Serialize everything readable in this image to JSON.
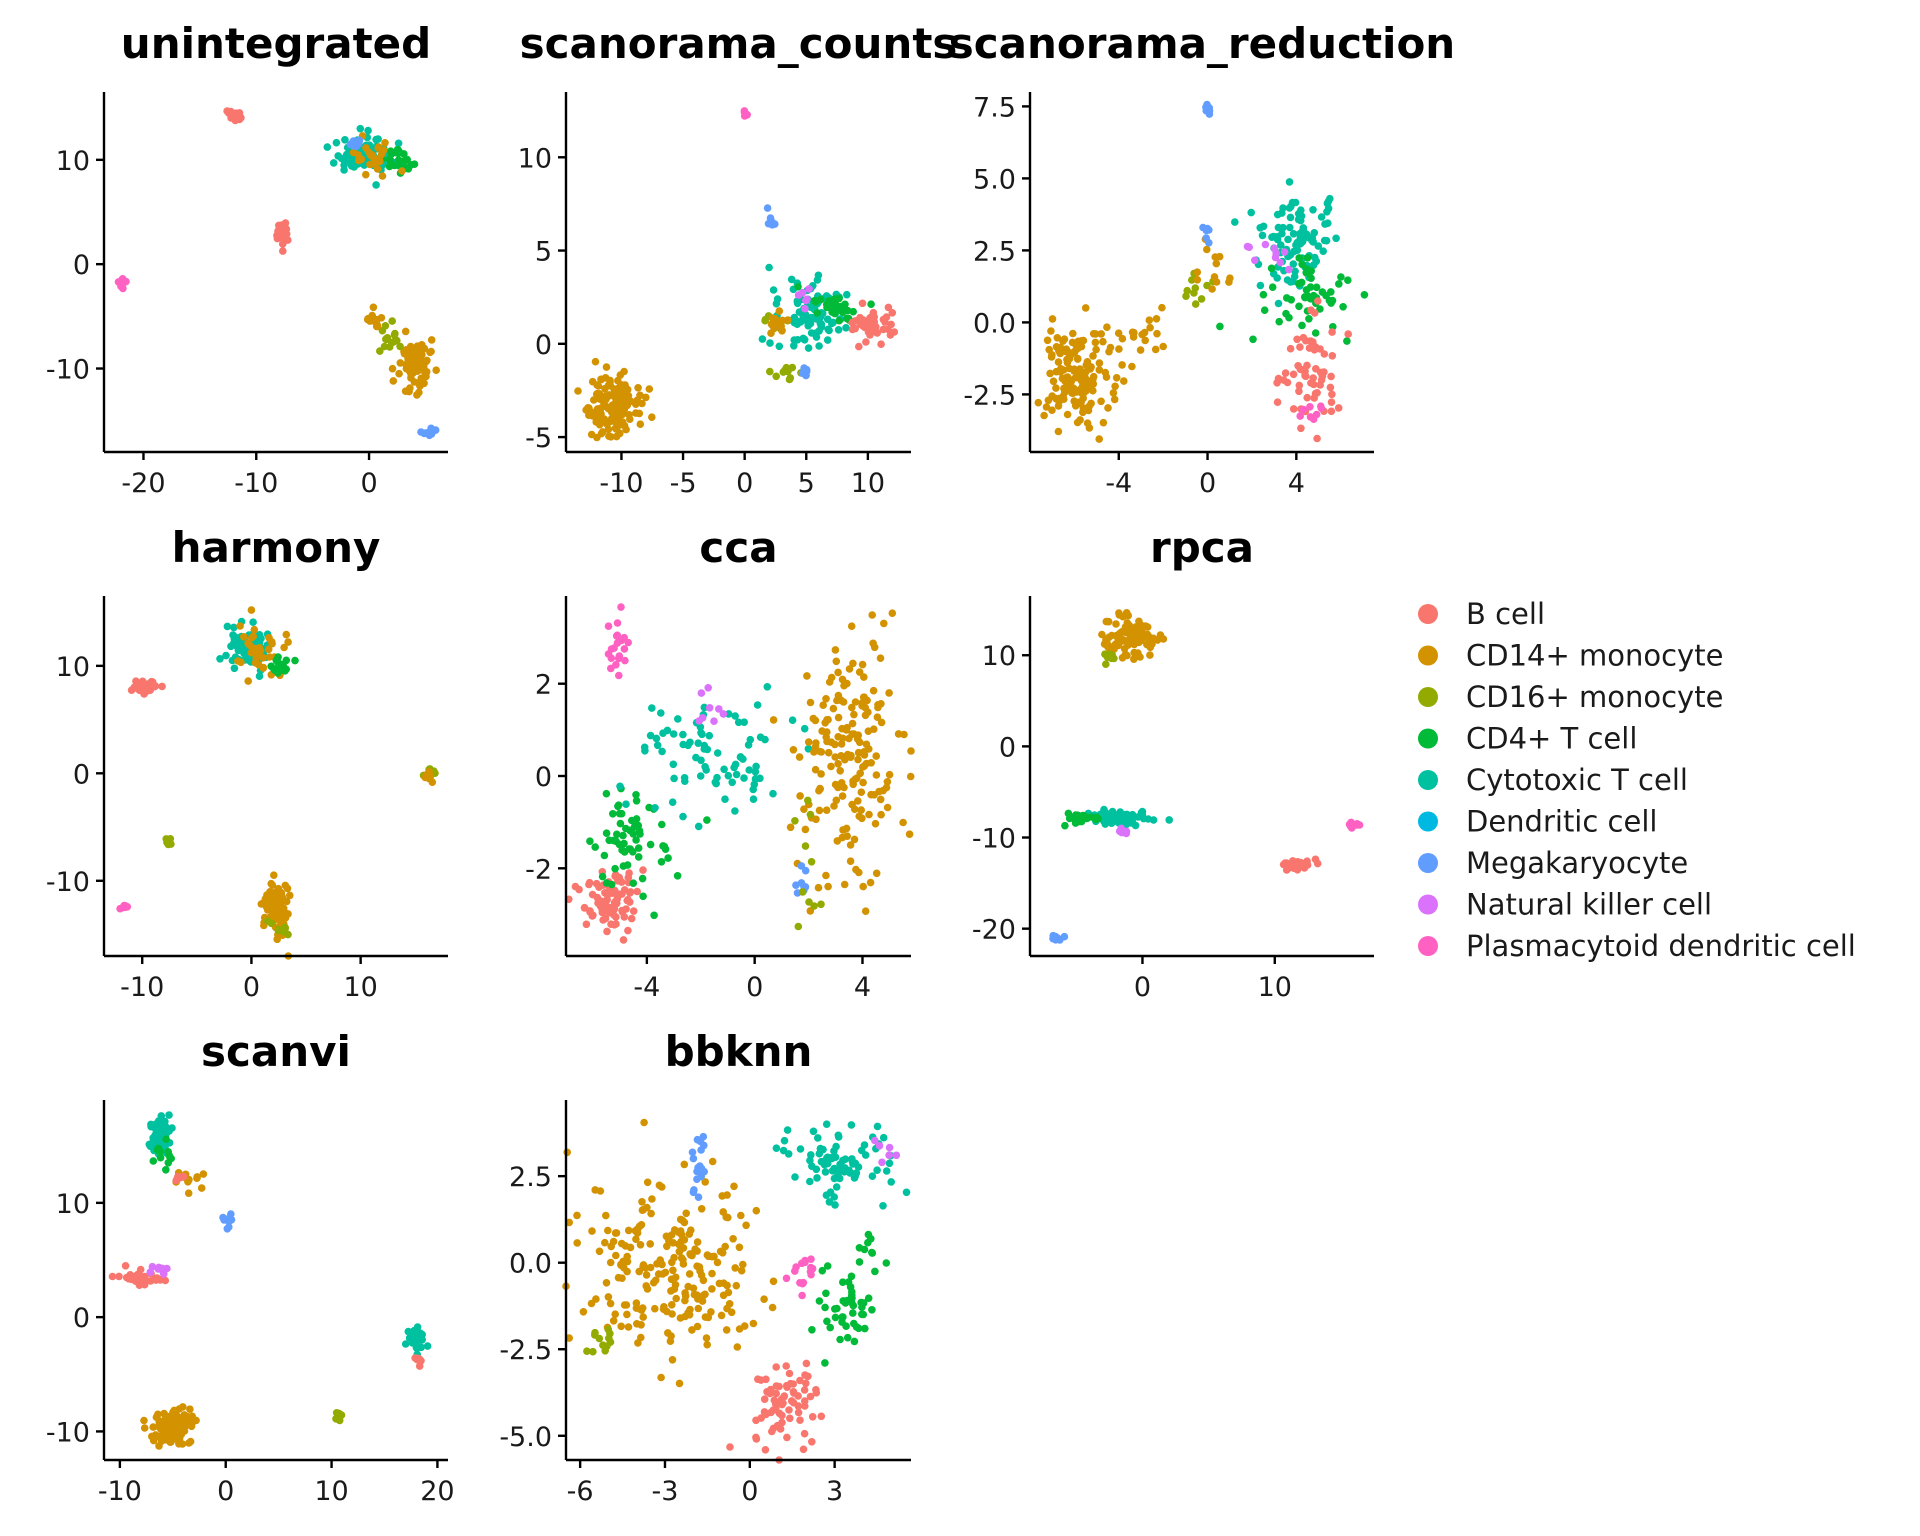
{
  "figure": {
    "legend": [
      {
        "label": "B cell",
        "color": "#F8766D"
      },
      {
        "label": "CD14+ monocyte",
        "color": "#D39200"
      },
      {
        "label": "CD16+ monocyte",
        "color": "#93AA00"
      },
      {
        "label": "CD4+ T cell",
        "color": "#00BA38"
      },
      {
        "label": "Cytotoxic T cell",
        "color": "#00C19F"
      },
      {
        "label": "Dendritic cell",
        "color": "#00B9E3"
      },
      {
        "label": "Megakaryocyte",
        "color": "#619CFF"
      },
      {
        "label": "Natural killer cell",
        "color": "#DB72FB"
      },
      {
        "label": "Plasmacytoid dendritic cell",
        "color": "#FF61C3"
      }
    ],
    "legend_placement": "right, beside middle row"
  },
  "chart_data": [
    {
      "type": "scatter",
      "title": "unintegrated",
      "xlim": [
        -23.5,
        7
      ],
      "ylim": [
        -18,
        16.5
      ],
      "xticks": [
        {
          "v": -20,
          "label": "-20"
        },
        {
          "v": -10,
          "label": "-10"
        },
        {
          "v": 0,
          "label": "0"
        }
      ],
      "yticks": [
        {
          "v": 10,
          "label": "10"
        },
        {
          "v": 0,
          "label": "0"
        },
        {
          "v": -10,
          "label": "-10"
        }
      ],
      "clusters": [
        {
          "cell_type": "B cell",
          "cx": -12,
          "cy": 14,
          "sx": 0.3,
          "sy": 0.4,
          "n": 18
        },
        {
          "cell_type": "B cell",
          "cx": -7.8,
          "cy": 3,
          "sx": 0.3,
          "sy": 0.6,
          "n": 30
        },
        {
          "cell_type": "Plasmacytoid dendritic cell",
          "cx": -22,
          "cy": -1.8,
          "sx": 0.2,
          "sy": 0.3,
          "n": 8
        },
        {
          "cell_type": "Cytotoxic T cell",
          "cx": -0.5,
          "cy": 10.5,
          "sx": 1.2,
          "sy": 0.8,
          "n": 80
        },
        {
          "cell_type": "CD4+ T cell",
          "cx": 2.5,
          "cy": 10,
          "sx": 0.8,
          "sy": 0.6,
          "n": 25
        },
        {
          "cell_type": "CD14+ monocyte",
          "cx": 0.5,
          "cy": 10.5,
          "sx": 1.0,
          "sy": 0.7,
          "n": 25
        },
        {
          "cell_type": "Megakaryocyte",
          "cx": -1,
          "cy": 11.5,
          "sx": 0.4,
          "sy": 0.3,
          "n": 8
        },
        {
          "cell_type": "CD14+ monocyte",
          "cx": 4.2,
          "cy": -9.5,
          "sx": 0.7,
          "sy": 1.2,
          "n": 90
        },
        {
          "cell_type": "CD16+ monocyte",
          "cx": 1.5,
          "cy": -7,
          "sx": 0.6,
          "sy": 0.8,
          "n": 15
        },
        {
          "cell_type": "CD14+ monocyte",
          "cx": 0.5,
          "cy": -5.5,
          "sx": 0.4,
          "sy": 0.5,
          "n": 12
        },
        {
          "cell_type": "Megakaryocyte",
          "cx": 5.4,
          "cy": -16.2,
          "sx": 0.3,
          "sy": 0.2,
          "n": 10
        }
      ]
    },
    {
      "type": "scatter",
      "title": "scanorama_counts",
      "xlim": [
        -14.5,
        13.5
      ],
      "ylim": [
        -5.8,
        13.5
      ],
      "xticks": [
        {
          "v": -10,
          "label": "-10"
        },
        {
          "v": -5,
          "label": "-5"
        },
        {
          "v": 0,
          "label": "0"
        },
        {
          "v": 5,
          "label": "5"
        },
        {
          "v": 10,
          "label": "10"
        }
      ],
      "yticks": [
        {
          "v": 10,
          "label": "10"
        },
        {
          "v": 5,
          "label": "5"
        },
        {
          "v": 0,
          "label": "0"
        },
        {
          "v": -5,
          "label": "-5"
        }
      ],
      "clusters": [
        {
          "cell_type": "CD14+ monocyte",
          "cx": -10.5,
          "cy": -3.5,
          "sx": 1.0,
          "sy": 0.8,
          "n": 150
        },
        {
          "cell_type": "Plasmacytoid dendritic cell",
          "cx": 0,
          "cy": 12.4,
          "sx": 0.1,
          "sy": 0.2,
          "n": 6
        },
        {
          "cell_type": "Megakaryocyte",
          "cx": 2,
          "cy": 6.8,
          "sx": 0.2,
          "sy": 0.3,
          "n": 6
        },
        {
          "cell_type": "Cytotoxic T cell",
          "cx": 5.5,
          "cy": 1.5,
          "sx": 1.5,
          "sy": 0.8,
          "n": 90
        },
        {
          "cell_type": "CD4+ T cell",
          "cx": 7.5,
          "cy": 2,
          "sx": 1.2,
          "sy": 0.5,
          "n": 30
        },
        {
          "cell_type": "CD16+ monocyte",
          "cx": 2,
          "cy": 1.2,
          "sx": 0.6,
          "sy": 0.2,
          "n": 10
        },
        {
          "cell_type": "CD14+ monocyte",
          "cx": 2.5,
          "cy": 1.2,
          "sx": 0.8,
          "sy": 0.3,
          "n": 15
        },
        {
          "cell_type": "B cell",
          "cx": 10.5,
          "cy": 1,
          "sx": 1.0,
          "sy": 0.5,
          "n": 50
        },
        {
          "cell_type": "Natural killer cell",
          "cx": 5,
          "cy": 2.5,
          "sx": 0.4,
          "sy": 0.3,
          "n": 6
        },
        {
          "cell_type": "CD16+ monocyte",
          "cx": 3.5,
          "cy": -1.5,
          "sx": 0.9,
          "sy": 0.2,
          "n": 12
        },
        {
          "cell_type": "Megakaryocyte",
          "cx": 5,
          "cy": -1.5,
          "sx": 0.2,
          "sy": 0.3,
          "n": 6
        }
      ]
    },
    {
      "type": "scatter",
      "title": "scanorama_reduction",
      "xlim": [
        -8,
        7.5
      ],
      "ylim": [
        -4.5,
        8.0
      ],
      "xticks": [
        {
          "v": -4,
          "label": "-4"
        },
        {
          "v": 0,
          "label": "0"
        },
        {
          "v": 4,
          "label": "4"
        }
      ],
      "yticks": [
        {
          "v": 7.5,
          "label": "7.5"
        },
        {
          "v": 5,
          "label": "5.0"
        },
        {
          "v": 2.5,
          "label": "2.5"
        },
        {
          "v": 0,
          "label": "0.0"
        },
        {
          "v": -2.5,
          "label": "-2.5"
        }
      ],
      "clusters": [
        {
          "cell_type": "CD14+ monocyte",
          "cx": -5.8,
          "cy": -1.8,
          "sx": 0.8,
          "sy": 0.9,
          "n": 160
        },
        {
          "cell_type": "CD14+ monocyte",
          "cx": -3,
          "cy": -0.5,
          "sx": 0.9,
          "sy": 0.5,
          "n": 18
        },
        {
          "cell_type": "CD16+ monocyte",
          "cx": -0.5,
          "cy": 1.2,
          "sx": 0.5,
          "sy": 0.3,
          "n": 10
        },
        {
          "cell_type": "CD14+ monocyte",
          "cx": 0.3,
          "cy": 2.2,
          "sx": 0.4,
          "sy": 0.6,
          "n": 12
        },
        {
          "cell_type": "Megakaryocyte",
          "cx": 0,
          "cy": 7.4,
          "sx": 0.1,
          "sy": 0.1,
          "n": 6
        },
        {
          "cell_type": "Megakaryocyte",
          "cx": -0.1,
          "cy": 3,
          "sx": 0.1,
          "sy": 0.2,
          "n": 6
        },
        {
          "cell_type": "Cytotoxic T cell",
          "cx": 4,
          "cy": 2.8,
          "sx": 0.8,
          "sy": 0.8,
          "n": 100
        },
        {
          "cell_type": "CD4+ T cell",
          "cx": 4.2,
          "cy": 0.8,
          "sx": 1.1,
          "sy": 0.6,
          "n": 50
        },
        {
          "cell_type": "B cell",
          "cx": 4.8,
          "cy": -1.6,
          "sx": 0.6,
          "sy": 0.9,
          "n": 60
        },
        {
          "cell_type": "Natural killer cell",
          "cx": 2.5,
          "cy": 2.3,
          "sx": 0.6,
          "sy": 0.3,
          "n": 10
        },
        {
          "cell_type": "Plasmacytoid dendritic cell",
          "cx": 4.8,
          "cy": -3.2,
          "sx": 0.3,
          "sy": 0.2,
          "n": 8
        }
      ]
    },
    {
      "type": "scatter",
      "title": "harmony",
      "xlim": [
        -13.5,
        18
      ],
      "ylim": [
        -17,
        16.5
      ],
      "xticks": [
        {
          "v": -10,
          "label": "-10"
        },
        {
          "v": 0,
          "label": "0"
        },
        {
          "v": 10,
          "label": "10"
        }
      ],
      "yticks": [
        {
          "v": 10,
          "label": "10"
        },
        {
          "v": 0,
          "label": "0"
        },
        {
          "v": -10,
          "label": "-10"
        }
      ],
      "clusters": [
        {
          "cell_type": "B cell",
          "cx": -9.8,
          "cy": 8,
          "sx": 0.6,
          "sy": 0.3,
          "n": 35
        },
        {
          "cell_type": "Cytotoxic T cell",
          "cx": -0.5,
          "cy": 12,
          "sx": 1.0,
          "sy": 1.2,
          "n": 60
        },
        {
          "cell_type": "CD14+ monocyte",
          "cx": 1,
          "cy": 11.5,
          "sx": 1.3,
          "sy": 1.4,
          "n": 35
        },
        {
          "cell_type": "CD4+ T cell",
          "cx": 2.5,
          "cy": 10,
          "sx": 0.5,
          "sy": 0.4,
          "n": 15
        },
        {
          "cell_type": "CD16+ monocyte",
          "cx": 16.2,
          "cy": 0,
          "sx": 0.2,
          "sy": 0.4,
          "n": 10
        },
        {
          "cell_type": "CD14+ monocyte",
          "cx": 16.3,
          "cy": -0.3,
          "sx": 0.2,
          "sy": 0.4,
          "n": 8
        },
        {
          "cell_type": "CD16+ monocyte",
          "cx": -7.6,
          "cy": -6.2,
          "sx": 0.2,
          "sy": 0.2,
          "n": 5
        },
        {
          "cell_type": "CD14+ monocyte",
          "cx": 2.2,
          "cy": -12.5,
          "sx": 0.6,
          "sy": 1.4,
          "n": 90
        },
        {
          "cell_type": "CD16+ monocyte",
          "cx": 2.5,
          "cy": -14.5,
          "sx": 0.5,
          "sy": 0.4,
          "n": 10
        },
        {
          "cell_type": "Plasmacytoid dendritic cell",
          "cx": -11.8,
          "cy": -12.5,
          "sx": 0.2,
          "sy": 0.2,
          "n": 6
        }
      ]
    },
    {
      "type": "scatter",
      "title": "cca",
      "xlim": [
        -7,
        5.8
      ],
      "ylim": [
        -3.9,
        3.9
      ],
      "xticks": [
        {
          "v": -4,
          "label": "-4"
        },
        {
          "v": 0,
          "label": "0"
        },
        {
          "v": 4,
          "label": "4"
        }
      ],
      "yticks": [
        {
          "v": 2,
          "label": "2"
        },
        {
          "v": 0,
          "label": "0"
        },
        {
          "v": -2,
          "label": "-2"
        }
      ],
      "clusters": [
        {
          "cell_type": "Plasmacytoid dendritic cell",
          "cx": -5.1,
          "cy": 2.8,
          "sx": 0.2,
          "sy": 0.25,
          "n": 20
        },
        {
          "cell_type": "B cell",
          "cx": -5.3,
          "cy": -2.7,
          "sx": 0.6,
          "sy": 0.35,
          "n": 80
        },
        {
          "cell_type": "CD4+ T cell",
          "cx": -4.5,
          "cy": -1.3,
          "sx": 0.8,
          "sy": 0.5,
          "n": 60
        },
        {
          "cell_type": "Cytotoxic T cell",
          "cx": -1.8,
          "cy": 0.5,
          "sx": 1.5,
          "sy": 0.7,
          "n": 80
        },
        {
          "cell_type": "Natural killer cell",
          "cx": -1.8,
          "cy": 1.4,
          "sx": 0.3,
          "sy": 0.2,
          "n": 8
        },
        {
          "cell_type": "CD14+ monocyte",
          "cx": 3.5,
          "cy": 0.5,
          "sx": 1.0,
          "sy": 1.4,
          "n": 180
        },
        {
          "cell_type": "Megakaryocyte",
          "cx": 1.7,
          "cy": -2.3,
          "sx": 0.2,
          "sy": 0.3,
          "n": 8
        },
        {
          "cell_type": "CD16+ monocyte",
          "cx": 2,
          "cy": -1.5,
          "sx": 0.4,
          "sy": 0.8,
          "n": 10
        }
      ]
    },
    {
      "type": "scatter",
      "title": "rpca",
      "xlim": [
        -8.5,
        17.5
      ],
      "ylim": [
        -23,
        16.5
      ],
      "xticks": [
        {
          "v": 0,
          "label": "0"
        },
        {
          "v": 10,
          "label": "10"
        }
      ],
      "yticks": [
        {
          "v": 10,
          "label": "10"
        },
        {
          "v": 0,
          "label": "0"
        },
        {
          "v": -10,
          "label": "-10"
        },
        {
          "v": -20,
          "label": "-20"
        }
      ],
      "clusters": [
        {
          "cell_type": "CD14+ monocyte",
          "cx": -1,
          "cy": 12,
          "sx": 0.9,
          "sy": 1.1,
          "n": 90
        },
        {
          "cell_type": "CD16+ monocyte",
          "cx": -2.7,
          "cy": 10,
          "sx": 0.4,
          "sy": 0.4,
          "n": 8
        },
        {
          "cell_type": "Cytotoxic T cell",
          "cx": -2,
          "cy": -7.8,
          "sx": 1.3,
          "sy": 0.4,
          "n": 60
        },
        {
          "cell_type": "CD4+ T cell",
          "cx": -4.5,
          "cy": -7.8,
          "sx": 0.6,
          "sy": 0.3,
          "n": 25
        },
        {
          "cell_type": "Natural killer cell",
          "cx": -1.5,
          "cy": -9.3,
          "sx": 0.3,
          "sy": 0.2,
          "n": 6
        },
        {
          "cell_type": "B cell",
          "cx": 11.5,
          "cy": -13,
          "sx": 0.5,
          "sy": 0.3,
          "n": 35
        },
        {
          "cell_type": "Plasmacytoid dendritic cell",
          "cx": 16,
          "cy": -8.6,
          "sx": 0.2,
          "sy": 0.2,
          "n": 8
        },
        {
          "cell_type": "Megakaryocyte",
          "cx": -6.5,
          "cy": -21,
          "sx": 0.3,
          "sy": 0.2,
          "n": 8
        }
      ]
    },
    {
      "type": "scatter",
      "title": "scanvi",
      "xlim": [
        -11.5,
        21
      ],
      "ylim": [
        -12.5,
        19
      ],
      "xticks": [
        {
          "v": -10,
          "label": "-10"
        },
        {
          "v": 0,
          "label": "0"
        },
        {
          "v": 10,
          "label": "10"
        },
        {
          "v": 20,
          "label": "20"
        }
      ],
      "yticks": [
        {
          "v": 10,
          "label": "10"
        },
        {
          "v": 0,
          "label": "0"
        },
        {
          "v": -10,
          "label": "-10"
        }
      ],
      "clusters": [
        {
          "cell_type": "Cytotoxic T cell",
          "cx": -6.2,
          "cy": 16,
          "sx": 0.5,
          "sy": 1.0,
          "n": 50
        },
        {
          "cell_type": "CD4+ T cell",
          "cx": -5.8,
          "cy": 14.5,
          "sx": 0.5,
          "sy": 0.8,
          "n": 12
        },
        {
          "cell_type": "CD14+ monocyte",
          "cx": -3.5,
          "cy": 12,
          "sx": 0.8,
          "sy": 0.4,
          "n": 12
        },
        {
          "cell_type": "B cell",
          "cx": -4.5,
          "cy": 12.3,
          "sx": 0.3,
          "sy": 0.2,
          "n": 6
        },
        {
          "cell_type": "Megakaryocyte",
          "cx": 0.2,
          "cy": 8.6,
          "sx": 0.3,
          "sy": 0.6,
          "n": 8
        },
        {
          "cell_type": "B cell",
          "cx": -8.2,
          "cy": 3.5,
          "sx": 1.2,
          "sy": 0.3,
          "n": 35
        },
        {
          "cell_type": "Natural killer cell",
          "cx": -6.3,
          "cy": 4.3,
          "sx": 0.3,
          "sy": 0.3,
          "n": 8
        },
        {
          "cell_type": "CD14+ monocyte",
          "cx": -4.8,
          "cy": -9.5,
          "sx": 1.2,
          "sy": 0.8,
          "n": 110
        },
        {
          "cell_type": "CD16+ monocyte",
          "cx": 10.8,
          "cy": -8.8,
          "sx": 0.3,
          "sy": 0.2,
          "n": 8
        },
        {
          "cell_type": "Cytotoxic T cell",
          "cx": 18,
          "cy": -2,
          "sx": 0.5,
          "sy": 0.5,
          "n": 25
        },
        {
          "cell_type": "B cell",
          "cx": 18.2,
          "cy": -3.8,
          "sx": 0.2,
          "sy": 0.3,
          "n": 6
        }
      ]
    },
    {
      "type": "scatter",
      "title": "bbknn",
      "xlim": [
        -6.5,
        5.7
      ],
      "ylim": [
        -5.7,
        4.7
      ],
      "xticks": [
        {
          "v": -6,
          "label": "-6"
        },
        {
          "v": -3,
          "label": "-3"
        },
        {
          "v": 0,
          "label": "0"
        },
        {
          "v": 3,
          "label": "3"
        }
      ],
      "yticks": [
        {
          "v": 2.5,
          "label": "2.5"
        },
        {
          "v": 0,
          "label": "0.0"
        },
        {
          "v": -2.5,
          "label": "-2.5"
        },
        {
          "v": -5,
          "label": "-5.0"
        }
      ],
      "clusters": [
        {
          "cell_type": "CD14+ monocyte",
          "cx": -2.8,
          "cy": 0,
          "sx": 1.5,
          "sy": 1.2,
          "n": 220
        },
        {
          "cell_type": "Megakaryocyte",
          "cx": -1.8,
          "cy": 2.8,
          "sx": 0.15,
          "sy": 0.6,
          "n": 18
        },
        {
          "cell_type": "CD16+ monocyte",
          "cx": -5.3,
          "cy": -2.3,
          "sx": 0.3,
          "sy": 0.3,
          "n": 12
        },
        {
          "cell_type": "Cytotoxic T cell",
          "cx": 3.2,
          "cy": 2.8,
          "sx": 1.0,
          "sy": 0.6,
          "n": 80
        },
        {
          "cell_type": "CD4+ T cell",
          "cx": 3.5,
          "cy": -1.5,
          "sx": 0.5,
          "sy": 0.6,
          "n": 45
        },
        {
          "cell_type": "CD4+ T cell",
          "cx": 4.2,
          "cy": 0.3,
          "sx": 0.2,
          "sy": 0.3,
          "n": 10
        },
        {
          "cell_type": "B cell",
          "cx": 1.2,
          "cy": -4,
          "sx": 0.6,
          "sy": 0.7,
          "n": 70
        },
        {
          "cell_type": "Plasmacytoid dendritic cell",
          "cx": 1.8,
          "cy": -0.3,
          "sx": 0.3,
          "sy": 0.3,
          "n": 15
        },
        {
          "cell_type": "Natural killer cell",
          "cx": 4.8,
          "cy": 3.2,
          "sx": 0.2,
          "sy": 0.2,
          "n": 6
        }
      ]
    }
  ]
}
